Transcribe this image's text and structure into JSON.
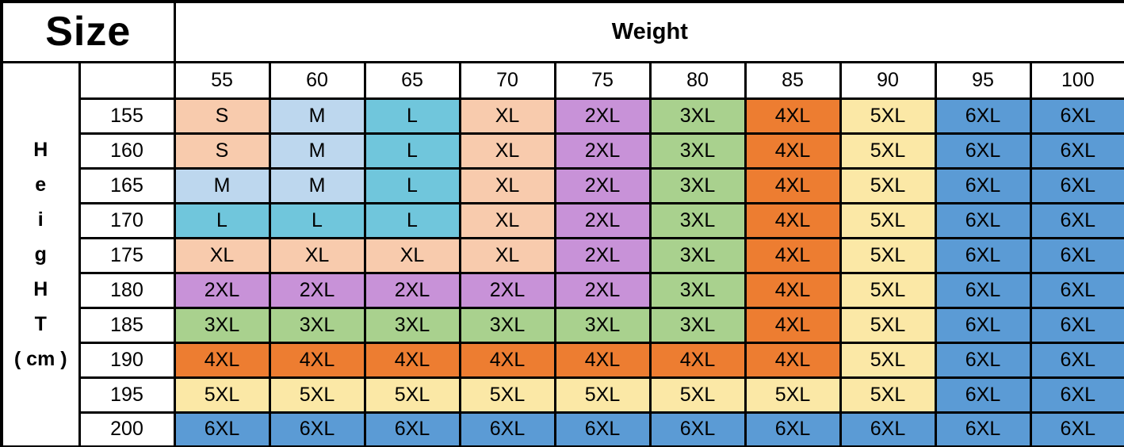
{
  "table": {
    "corner_label": "Size",
    "column_group_header": "Weight",
    "row_group_label_lines": [
      "H",
      "e",
      "i",
      "g",
      "H",
      "T",
      "( cm )"
    ],
    "weight_columns": [
      "55",
      "60",
      "65",
      "70",
      "75",
      "80",
      "85",
      "90",
      "95",
      "100"
    ],
    "height_rows": [
      "155",
      "160",
      "165",
      "170",
      "175",
      "180",
      "185",
      "190",
      "195",
      "200"
    ],
    "cells": [
      [
        "S",
        "M",
        "L",
        "XL",
        "2XL",
        "3XL",
        "4XL",
        "5XL",
        "6XL",
        "6XL"
      ],
      [
        "S",
        "M",
        "L",
        "XL",
        "2XL",
        "3XL",
        "4XL",
        "5XL",
        "6XL",
        "6XL"
      ],
      [
        "M",
        "M",
        "L",
        "XL",
        "2XL",
        "3XL",
        "4XL",
        "5XL",
        "6XL",
        "6XL"
      ],
      [
        "L",
        "L",
        "L",
        "XL",
        "2XL",
        "3XL",
        "4XL",
        "5XL",
        "6XL",
        "6XL"
      ],
      [
        "XL",
        "XL",
        "XL",
        "XL",
        "2XL",
        "3XL",
        "4XL",
        "5XL",
        "6XL",
        "6XL"
      ],
      [
        "2XL",
        "2XL",
        "2XL",
        "2XL",
        "2XL",
        "3XL",
        "4XL",
        "5XL",
        "6XL",
        "6XL"
      ],
      [
        "3XL",
        "3XL",
        "3XL",
        "3XL",
        "3XL",
        "3XL",
        "4XL",
        "5XL",
        "6XL",
        "6XL"
      ],
      [
        "4XL",
        "4XL",
        "4XL",
        "4XL",
        "4XL",
        "4XL",
        "4XL",
        "5XL",
        "6XL",
        "6XL"
      ],
      [
        "5XL",
        "5XL",
        "5XL",
        "5XL",
        "5XL",
        "5XL",
        "5XL",
        "5XL",
        "6XL",
        "6XL"
      ],
      [
        "6XL",
        "6XL",
        "6XL",
        "6XL",
        "6XL",
        "6XL",
        "6XL",
        "6XL",
        "6XL",
        "6XL"
      ]
    ],
    "size_colors": {
      "S": "#F8CBAD",
      "M": "#BDD7EE",
      "L": "#70C6DC",
      "XL": "#F8CBAD",
      "2XL": "#C892D8",
      "3XL": "#A9D18E",
      "4XL": "#ED7D31",
      "5XL": "#FBE8A6",
      "6XL": "#5B9BD5"
    },
    "border_color": "#000000",
    "text_color": "#000000"
  },
  "chart_data": {
    "type": "table",
    "title": "Size",
    "column_axis_label": "Weight",
    "row_axis_label": "HeigHT ( cm )",
    "columns": [
      55,
      60,
      65,
      70,
      75,
      80,
      85,
      90,
      95,
      100
    ],
    "rows": [
      155,
      160,
      165,
      170,
      175,
      180,
      185,
      190,
      195,
      200
    ],
    "values": [
      [
        "S",
        "M",
        "L",
        "XL",
        "2XL",
        "3XL",
        "4XL",
        "5XL",
        "6XL",
        "6XL"
      ],
      [
        "S",
        "M",
        "L",
        "XL",
        "2XL",
        "3XL",
        "4XL",
        "5XL",
        "6XL",
        "6XL"
      ],
      [
        "M",
        "M",
        "L",
        "XL",
        "2XL",
        "3XL",
        "4XL",
        "5XL",
        "6XL",
        "6XL"
      ],
      [
        "L",
        "L",
        "L",
        "XL",
        "2XL",
        "3XL",
        "4XL",
        "5XL",
        "6XL",
        "6XL"
      ],
      [
        "XL",
        "XL",
        "XL",
        "XL",
        "2XL",
        "3XL",
        "4XL",
        "5XL",
        "6XL",
        "6XL"
      ],
      [
        "2XL",
        "2XL",
        "2XL",
        "2XL",
        "2XL",
        "3XL",
        "4XL",
        "5XL",
        "6XL",
        "6XL"
      ],
      [
        "3XL",
        "3XL",
        "3XL",
        "3XL",
        "3XL",
        "3XL",
        "4XL",
        "5XL",
        "6XL",
        "6XL"
      ],
      [
        "4XL",
        "4XL",
        "4XL",
        "4XL",
        "4XL",
        "4XL",
        "4XL",
        "5XL",
        "6XL",
        "6XL"
      ],
      [
        "5XL",
        "5XL",
        "5XL",
        "5XL",
        "5XL",
        "5XL",
        "5XL",
        "5XL",
        "6XL",
        "6XL"
      ],
      [
        "6XL",
        "6XL",
        "6XL",
        "6XL",
        "6XL",
        "6XL",
        "6XL",
        "6XL",
        "6XL",
        "6XL"
      ]
    ],
    "legend": {
      "S": "#F8CBAD",
      "M": "#BDD7EE",
      "L": "#70C6DC",
      "XL": "#F8CBAD",
      "2XL": "#C892D8",
      "3XL": "#A9D18E",
      "4XL": "#ED7D31",
      "5XL": "#FBE8A6",
      "6XL": "#5B9BD5"
    }
  }
}
